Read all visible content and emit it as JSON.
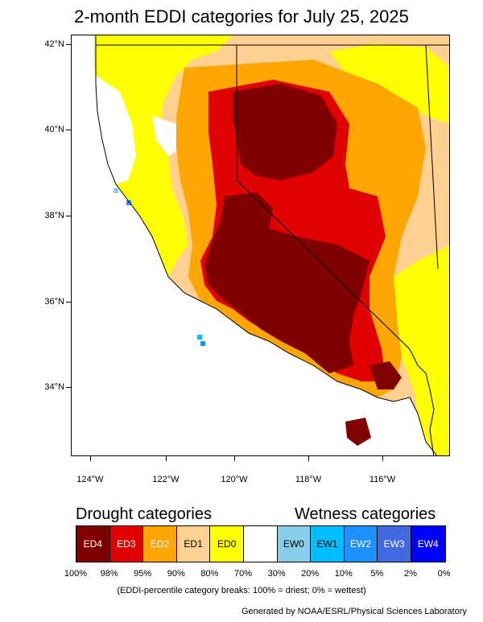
{
  "title": "2-month EDDI categories for July 25, 2025",
  "map": {
    "lat_labels": [
      "42°N",
      "40°N",
      "38°N",
      "36°N",
      "34°N"
    ],
    "lon_labels": [
      "124°W",
      "122°W",
      "120°W",
      "118°W",
      "116°W"
    ],
    "colors": {
      "ED4": "#800000",
      "ED3": "#e00000",
      "ED2": "#ffa500",
      "ED1": "#ffd090",
      "ED0": "#ffff00",
      "neutral": "#ffffff",
      "EW0": "#87ceeb",
      "EW1": "#00bfff",
      "EW2": "#1e90ff",
      "EW3": "#4169e1",
      "EW4": "#0000ff"
    }
  },
  "legend": {
    "drought_heading": "Drought categories",
    "wetness_heading": "Wetness categories",
    "categories": [
      {
        "label": "ED4",
        "color": "#800000",
        "text_color": "#ffffff"
      },
      {
        "label": "ED3",
        "color": "#e00000",
        "text_color": "#ffffff"
      },
      {
        "label": "ED2",
        "color": "#ffa500",
        "text_color": "#ffffff"
      },
      {
        "label": "ED1",
        "color": "#ffd090",
        "text_color": "#000000"
      },
      {
        "label": "ED0",
        "color": "#ffff00",
        "text_color": "#000000"
      },
      {
        "label": "",
        "color": "#ffffff",
        "text_color": "#000000"
      },
      {
        "label": "EW0",
        "color": "#87ceeb",
        "text_color": "#000000"
      },
      {
        "label": "EW1",
        "color": "#00bfff",
        "text_color": "#000000"
      },
      {
        "label": "EW2",
        "color": "#1e90ff",
        "text_color": "#ffffff"
      },
      {
        "label": "EW3",
        "color": "#4169e1",
        "text_color": "#ffffff"
      },
      {
        "label": "EW4",
        "color": "#0000ff",
        "text_color": "#ffffff"
      }
    ],
    "breaks": [
      "100%",
      "98%",
      "95%",
      "90%",
      "80%",
      "70%",
      "30%",
      "20%",
      "10%",
      "5%",
      "2%",
      "0%"
    ],
    "note": "(EDDI-percentile category breaks: 100% = driest; 0% = wettest)"
  },
  "credit": "Generated by NOAA/ESRL/Physical Sciences Laboratory"
}
